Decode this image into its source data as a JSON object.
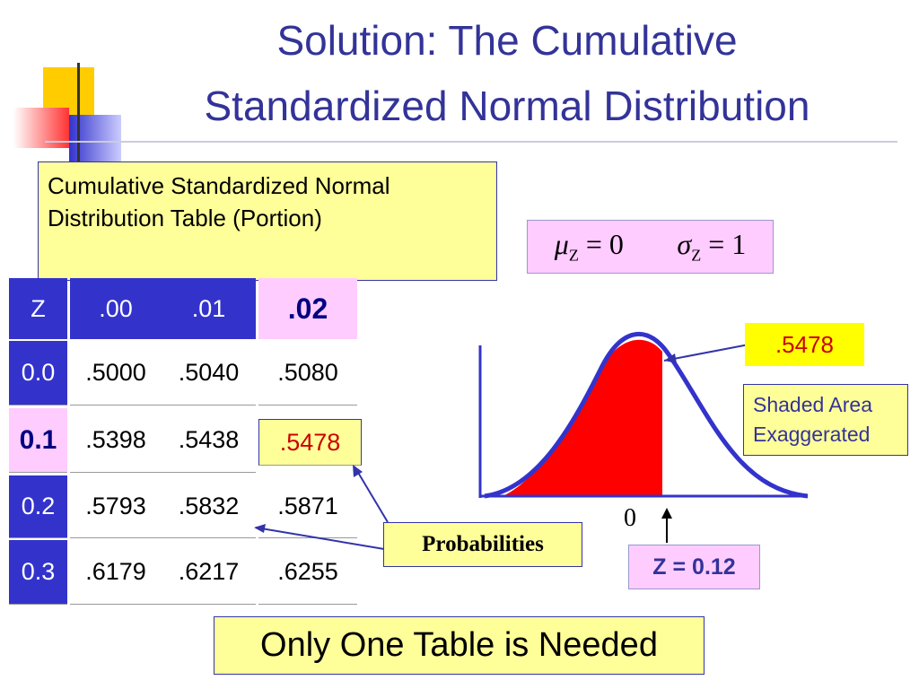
{
  "title": {
    "lines": [
      "Solution: The Cumulative",
      "Standardized Normal Distribution"
    ]
  },
  "table_caption": "Cumulative Standardized Normal Distribution Table (Portion)",
  "parameters": [
    {
      "symbol": "μ",
      "subscript": "Z",
      "equals": "= 0"
    },
    {
      "symbol": "σ",
      "subscript": "Z",
      "equals": "= 1"
    }
  ],
  "table": {
    "header": [
      "Z",
      ".00",
      ".01",
      ".02"
    ],
    "rows": [
      [
        "0.0",
        ".5000",
        ".5040",
        ".5080"
      ],
      [
        "0.1",
        ".5398",
        ".5438",
        ".5478"
      ],
      [
        "0.2",
        ".5793",
        ".5832",
        ".5871"
      ],
      [
        "0.3",
        ".6179",
        ".6217",
        ".6255"
      ]
    ]
  },
  "graph": {
    "area_value": ".5478",
    "note": "Shaded Area Exaggerated",
    "axis_label": "0",
    "z_label": "Z = 0.12"
  },
  "probabilities_label": "Probabilities",
  "footer": "Only One Table is Needed"
}
